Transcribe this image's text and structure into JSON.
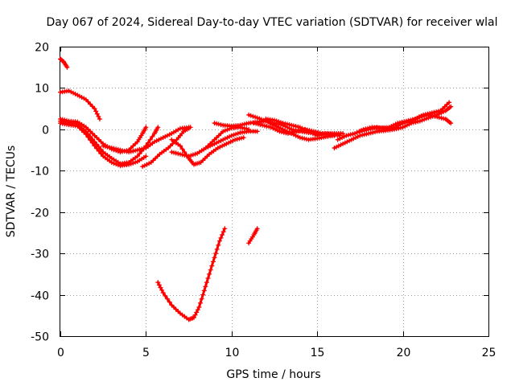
{
  "chart_data": {
    "type": "scatter",
    "title": "Day 067 of 2024, Sidereal Day-to-day VTEC variation (SDTVAR) for receiver wlal",
    "xlabel": "GPS time / hours",
    "ylabel": "SDTVAR / TECUs",
    "xlim": [
      0,
      25
    ],
    "ylim": [
      -50,
      20
    ],
    "xticks": [
      "0",
      "5",
      "10",
      "15",
      "20",
      "25"
    ],
    "yticks": [
      "20",
      "10",
      "0",
      "-10",
      "-20",
      "-30",
      "-40",
      "-50"
    ],
    "grid": true,
    "color": "#ff0000",
    "series": [
      {
        "name": "trace-a",
        "points": [
          [
            0.0,
            17.0
          ],
          [
            0.2,
            16.3
          ],
          [
            0.4,
            15.0
          ]
        ]
      },
      {
        "name": "trace-b",
        "points": [
          [
            0.0,
            9.0
          ],
          [
            0.5,
            9.3
          ],
          [
            1.0,
            8.3
          ],
          [
            1.5,
            7.2
          ],
          [
            2.0,
            5.0
          ],
          [
            2.3,
            2.5
          ]
        ]
      },
      {
        "name": "trace-c",
        "points": [
          [
            0.0,
            2.5
          ],
          [
            0.5,
            2.0
          ],
          [
            1.0,
            1.8
          ],
          [
            1.5,
            0.5
          ],
          [
            2.0,
            -1.5
          ],
          [
            2.5,
            -3.5
          ],
          [
            3.0,
            -4.8
          ],
          [
            3.5,
            -5.5
          ],
          [
            4.0,
            -5.0
          ],
          [
            4.5,
            -3.0
          ],
          [
            4.8,
            -1.0
          ],
          [
            5.0,
            0.5
          ]
        ]
      },
      {
        "name": "trace-d",
        "points": [
          [
            0.0,
            2.0
          ],
          [
            0.5,
            1.6
          ],
          [
            1.0,
            1.2
          ],
          [
            1.5,
            -0.5
          ],
          [
            2.0,
            -3.0
          ],
          [
            2.5,
            -5.5
          ],
          [
            3.0,
            -7.0
          ],
          [
            3.5,
            -8.3
          ],
          [
            4.0,
            -8.0
          ],
          [
            4.5,
            -6.5
          ],
          [
            5.0,
            -4.0
          ],
          [
            5.5,
            -1.0
          ],
          [
            5.7,
            0.5
          ]
        ]
      },
      {
        "name": "trace-e",
        "points": [
          [
            0.0,
            1.5
          ],
          [
            0.5,
            1.1
          ],
          [
            1.0,
            0.8
          ],
          [
            1.5,
            -1.2
          ],
          [
            2.0,
            -4.0
          ],
          [
            2.5,
            -6.5
          ],
          [
            3.0,
            -8.0
          ],
          [
            3.5,
            -8.8
          ],
          [
            4.0,
            -8.5
          ],
          [
            4.5,
            -7.8
          ],
          [
            5.0,
            -6.5
          ]
        ]
      },
      {
        "name": "trace-f",
        "points": [
          [
            2.5,
            -4.0
          ],
          [
            3.0,
            -4.5
          ],
          [
            3.5,
            -5.0
          ],
          [
            4.0,
            -5.5
          ],
          [
            4.5,
            -5.0
          ],
          [
            5.0,
            -4.5
          ],
          [
            5.5,
            -3.0
          ],
          [
            6.0,
            -2.0
          ],
          [
            6.5,
            -1.0
          ],
          [
            7.0,
            0.2
          ],
          [
            7.5,
            0.5
          ]
        ]
      },
      {
        "name": "trace-g",
        "points": [
          [
            4.8,
            -9.0
          ],
          [
            5.3,
            -8.0
          ],
          [
            5.8,
            -6.0
          ],
          [
            6.3,
            -4.5
          ],
          [
            6.8,
            -2.5
          ],
          [
            7.2,
            -0.5
          ],
          [
            7.6,
            0.5
          ]
        ]
      },
      {
        "name": "trace-h",
        "points": [
          [
            6.5,
            -5.5
          ],
          [
            7.0,
            -6.0
          ],
          [
            7.5,
            -6.5
          ],
          [
            8.0,
            -5.8
          ],
          [
            8.5,
            -4.5
          ],
          [
            9.0,
            -3.5
          ],
          [
            9.5,
            -2.5
          ],
          [
            10.0,
            -1.5
          ],
          [
            10.5,
            -0.8
          ],
          [
            11.0,
            -0.5
          ],
          [
            11.5,
            -0.5
          ]
        ]
      },
      {
        "name": "trace-i",
        "points": [
          [
            6.5,
            -2.5
          ],
          [
            7.0,
            -4.0
          ],
          [
            7.5,
            -7.0
          ],
          [
            7.8,
            -8.5
          ],
          [
            8.2,
            -8.0
          ],
          [
            8.7,
            -6.0
          ],
          [
            9.2,
            -4.5
          ],
          [
            9.7,
            -3.5
          ],
          [
            10.2,
            -2.5
          ],
          [
            10.7,
            -2.0
          ]
        ]
      },
      {
        "name": "trace-j",
        "points": [
          [
            8.5,
            -4.5
          ],
          [
            9.0,
            -2.5
          ],
          [
            9.5,
            -0.5
          ],
          [
            10.0,
            0.3
          ],
          [
            10.5,
            0.5
          ],
          [
            11.0,
            0.0
          ]
        ]
      },
      {
        "name": "trace-k",
        "points": [
          [
            9.0,
            1.5
          ],
          [
            9.5,
            1.0
          ],
          [
            10.0,
            0.8
          ],
          [
            10.5,
            1.0
          ],
          [
            11.0,
            1.5
          ],
          [
            11.5,
            1.8
          ],
          [
            12.0,
            2.0
          ],
          [
            12.5,
            1.5
          ],
          [
            13.0,
            1.0
          ],
          [
            13.5,
            0.0
          ],
          [
            14.0,
            -0.5
          ],
          [
            14.5,
            -0.8
          ],
          [
            15.0,
            -1.0
          ]
        ]
      },
      {
        "name": "trace-l",
        "points": [
          [
            11.0,
            3.5
          ],
          [
            11.5,
            2.8
          ],
          [
            12.0,
            2.0
          ],
          [
            12.5,
            1.0
          ],
          [
            13.0,
            0.0
          ],
          [
            13.5,
            -1.0
          ],
          [
            14.0,
            -2.0
          ],
          [
            14.5,
            -2.5
          ],
          [
            15.0,
            -2.2
          ],
          [
            15.5,
            -1.8
          ],
          [
            16.0,
            -1.5
          ]
        ]
      },
      {
        "name": "trace-m",
        "points": [
          [
            11.3,
            1.5
          ],
          [
            11.8,
            1.0
          ],
          [
            12.3,
            0.5
          ],
          [
            12.8,
            -0.5
          ],
          [
            13.3,
            -1.0
          ],
          [
            13.8,
            -0.5
          ],
          [
            14.3,
            0.0
          ],
          [
            14.8,
            -0.5
          ],
          [
            15.3,
            -1.0
          ],
          [
            15.8,
            -1.2
          ],
          [
            16.3,
            -1.5
          ]
        ]
      },
      {
        "name": "trace-n",
        "points": [
          [
            12.0,
            2.5
          ],
          [
            12.5,
            2.2
          ],
          [
            13.0,
            1.5
          ],
          [
            13.5,
            1.0
          ],
          [
            14.0,
            0.5
          ],
          [
            14.5,
            -0.5
          ],
          [
            15.0,
            -1.5
          ],
          [
            15.5,
            -1.0
          ],
          [
            16.0,
            -1.0
          ],
          [
            16.5,
            -1.0
          ]
        ]
      },
      {
        "name": "trace-o",
        "points": [
          [
            16.0,
            -4.5
          ],
          [
            16.5,
            -3.5
          ],
          [
            17.0,
            -2.5
          ],
          [
            17.5,
            -1.5
          ],
          [
            18.0,
            -1.0
          ],
          [
            18.5,
            -0.5
          ],
          [
            19.0,
            -0.3
          ],
          [
            19.5,
            0.0
          ],
          [
            20.0,
            0.5
          ],
          [
            20.5,
            1.5
          ],
          [
            21.0,
            2.0
          ],
          [
            21.5,
            2.8
          ],
          [
            22.0,
            3.5
          ],
          [
            22.5,
            4.5
          ],
          [
            22.8,
            5.5
          ]
        ]
      },
      {
        "name": "trace-p",
        "points": [
          [
            16.2,
            -2.5
          ],
          [
            16.7,
            -1.5
          ],
          [
            17.2,
            -1.0
          ],
          [
            17.7,
            0.0
          ],
          [
            18.2,
            0.5
          ],
          [
            18.7,
            0.3
          ],
          [
            19.2,
            0.5
          ],
          [
            19.7,
            1.5
          ],
          [
            20.2,
            2.0
          ],
          [
            20.7,
            2.5
          ],
          [
            21.2,
            3.5
          ],
          [
            21.7,
            4.0
          ],
          [
            22.2,
            4.5
          ],
          [
            22.7,
            6.5
          ]
        ]
      },
      {
        "name": "trace-q",
        "points": [
          [
            17.5,
            -0.5
          ],
          [
            18.0,
            0.0
          ],
          [
            18.5,
            0.5
          ],
          [
            19.0,
            0.2
          ],
          [
            19.5,
            0.3
          ],
          [
            20.0,
            1.5
          ],
          [
            20.5,
            2.0
          ],
          [
            21.0,
            3.0
          ],
          [
            21.5,
            3.5
          ],
          [
            22.0,
            3.0
          ],
          [
            22.5,
            2.5
          ],
          [
            22.8,
            1.5
          ]
        ]
      },
      {
        "name": "trace-r",
        "points": [
          [
            5.7,
            -37.0
          ],
          [
            6.0,
            -39.5
          ],
          [
            6.5,
            -42.5
          ],
          [
            7.0,
            -44.5
          ],
          [
            7.5,
            -46.0
          ],
          [
            7.8,
            -45.5
          ],
          [
            8.1,
            -43.0
          ],
          [
            8.4,
            -39.0
          ],
          [
            8.7,
            -35.0
          ],
          [
            9.0,
            -31.0
          ],
          [
            9.3,
            -27.0
          ],
          [
            9.6,
            -24.0
          ]
        ]
      },
      {
        "name": "trace-s",
        "points": [
          [
            11.0,
            -27.5
          ],
          [
            11.3,
            -25.5
          ],
          [
            11.5,
            -24.0
          ]
        ]
      }
    ]
  }
}
